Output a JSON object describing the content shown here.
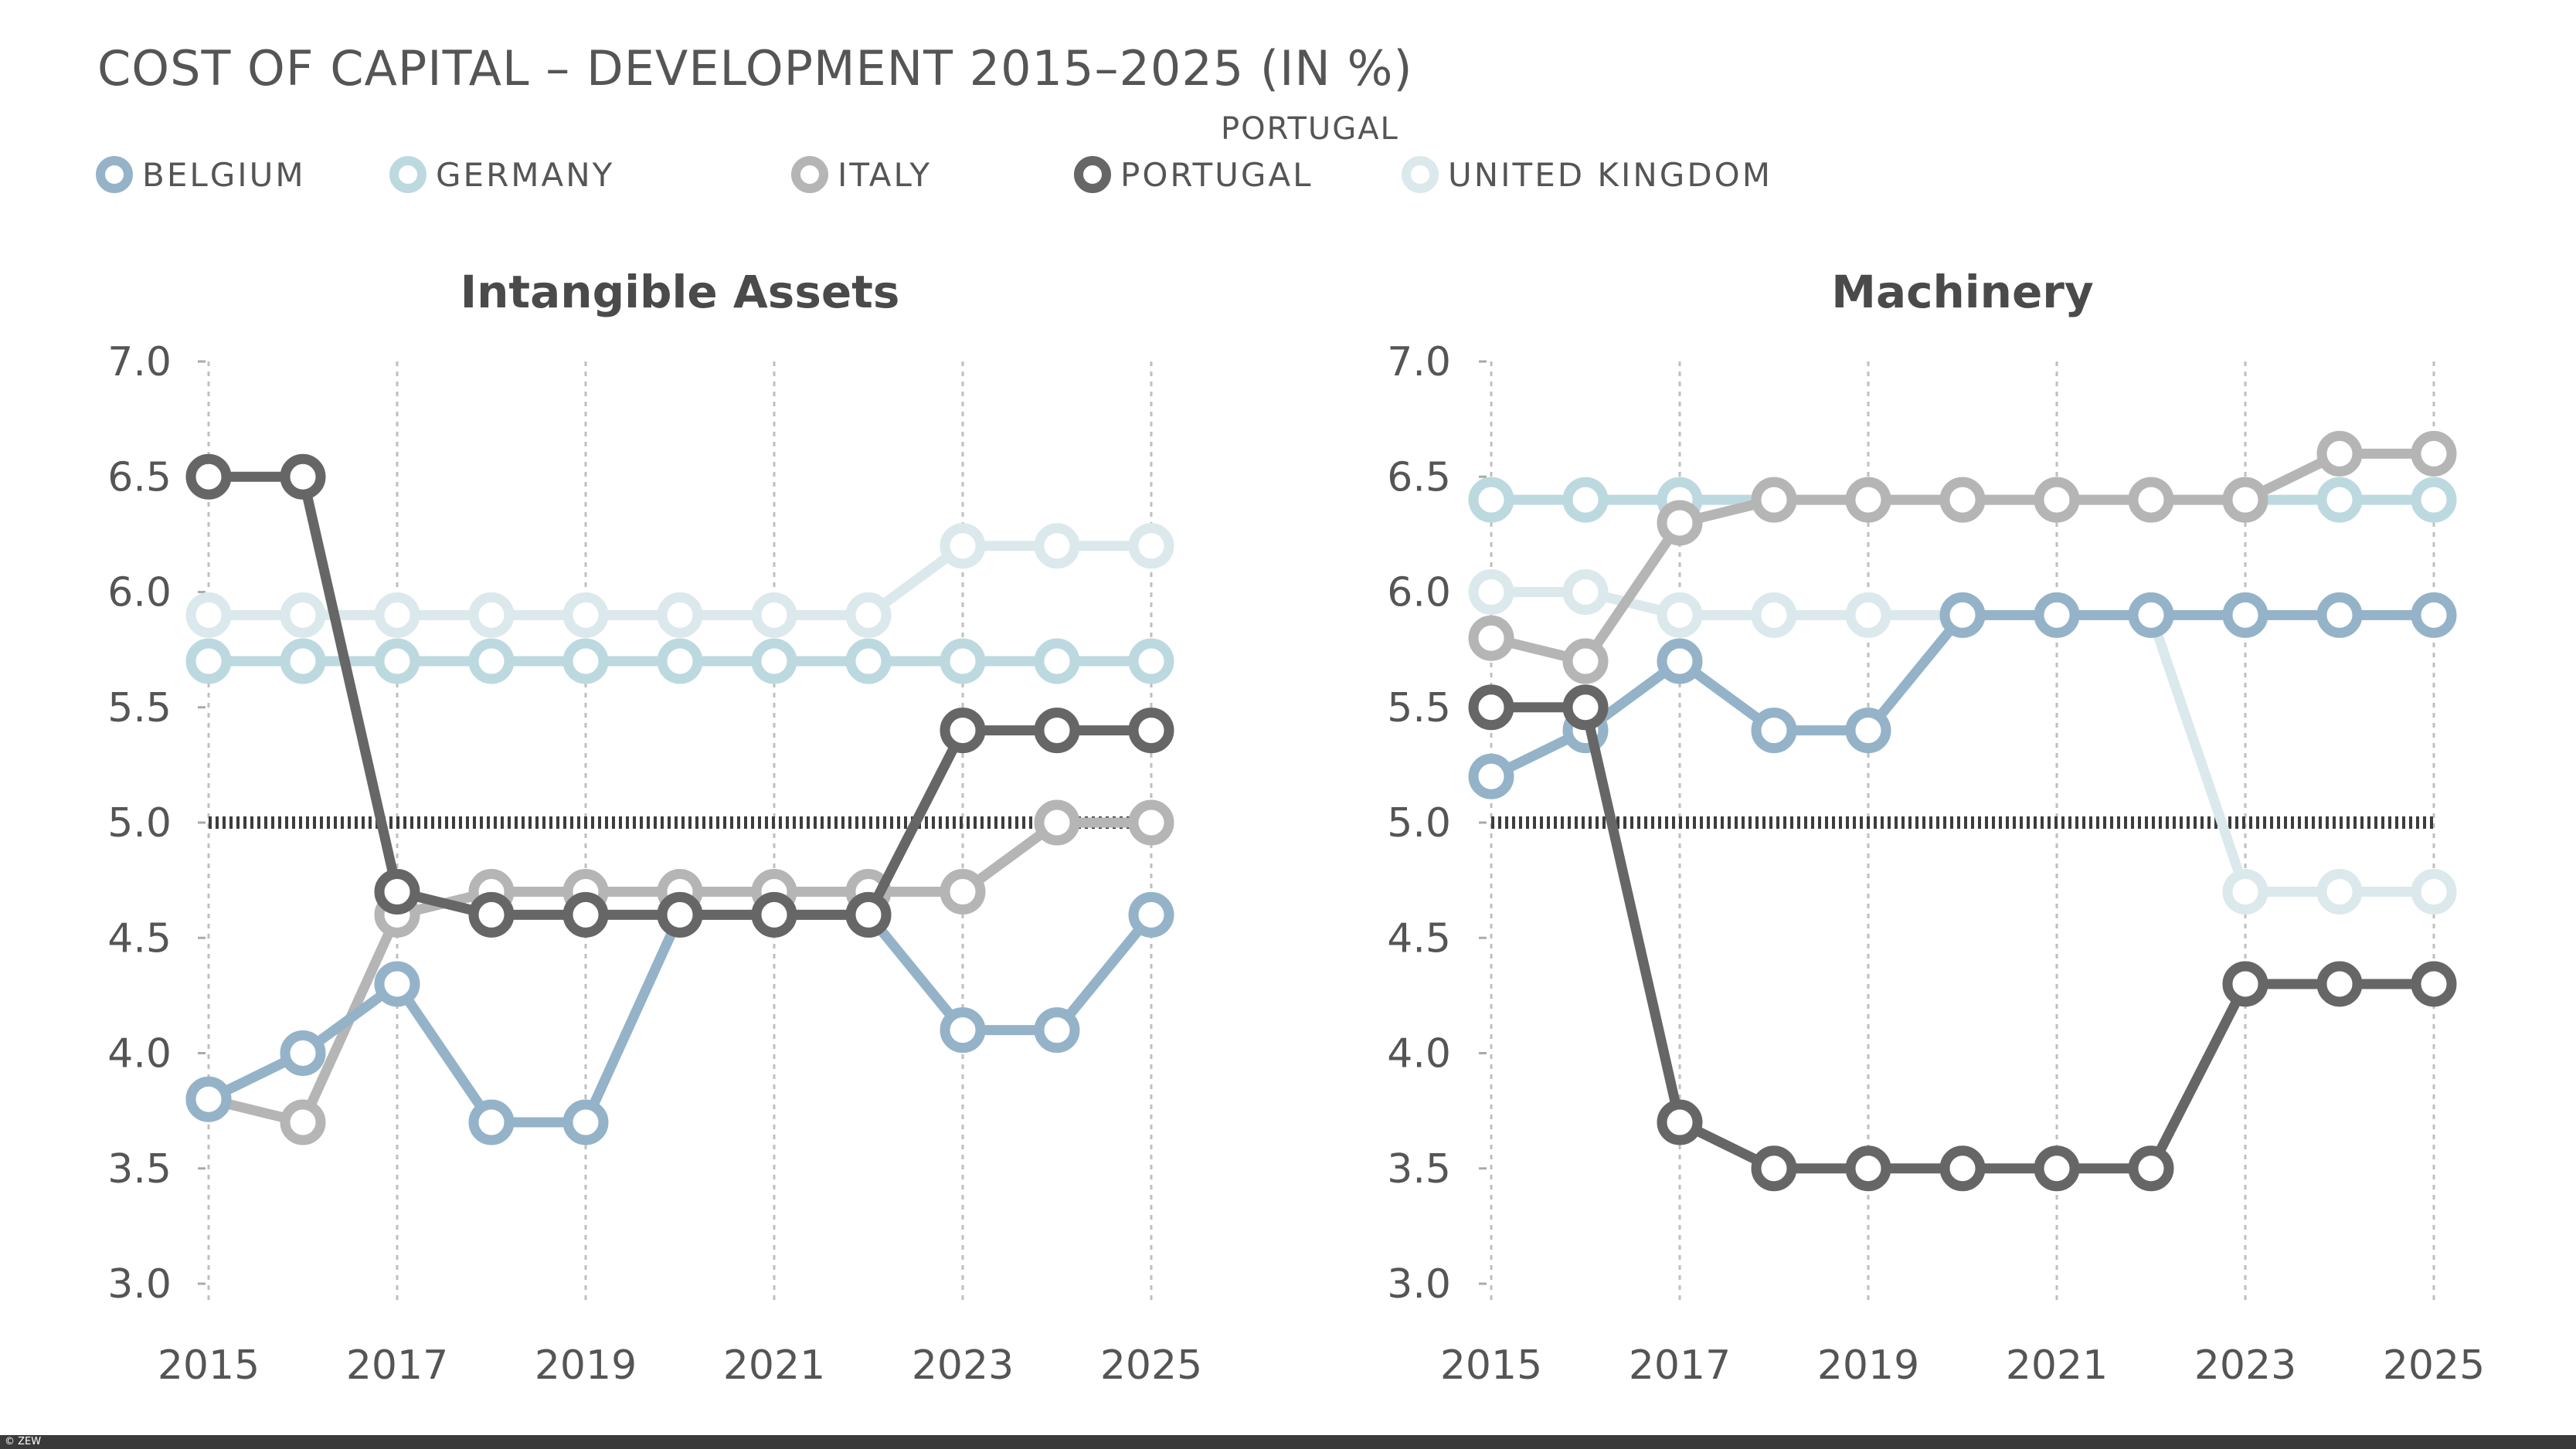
{
  "title": "COST OF CAPITAL – DEVELOPMENT 2015–2025 (IN %)",
  "legend_extra_label": "PORTUGAL",
  "legend": [
    {
      "label": "BELGIUM",
      "color": "#94b3c8"
    },
    {
      "label": "GERMANY",
      "color": "#bcd9df"
    },
    {
      "label": "ITALY",
      "color": "#b5b5b5"
    },
    {
      "label": "PORTUGAL",
      "color": "#666666"
    },
    {
      "label": "UNITED KINGDOM",
      "color": "#dbe9ec"
    }
  ],
  "footer": "© ZEW",
  "chart_data": [
    {
      "type": "line",
      "title": "Intangible Assets",
      "x": [
        2015,
        2016,
        2017,
        2018,
        2019,
        2020,
        2021,
        2022,
        2023,
        2024,
        2025
      ],
      "x_tick_labels": [
        "2015",
        "2017",
        "2019",
        "2021",
        "2023",
        "2025"
      ],
      "y_tick_labels": [
        "7.0",
        "6.5",
        "6.0",
        "5.5",
        "5.0",
        "4.5",
        "4.0",
        "3.5",
        "3.0"
      ],
      "ylim": [
        3.0,
        7.0
      ],
      "reference_line": 5.0,
      "grid": "vertical dotted",
      "series": [
        {
          "name": "UNITED KINGDOM",
          "color": "#dbe9ec",
          "values": [
            5.9,
            5.9,
            5.9,
            5.9,
            5.9,
            5.9,
            5.9,
            5.9,
            6.2,
            6.2,
            6.2
          ]
        },
        {
          "name": "GERMANY",
          "color": "#bcd9df",
          "values": [
            5.7,
            5.7,
            5.7,
            5.7,
            5.7,
            5.7,
            5.7,
            5.7,
            5.7,
            5.7,
            5.7
          ]
        },
        {
          "name": "ITALY",
          "color": "#b5b5b5",
          "values": [
            3.8,
            3.7,
            4.6,
            4.7,
            4.7,
            4.7,
            4.7,
            4.7,
            4.7,
            5.0,
            5.0
          ]
        },
        {
          "name": "BELGIUM",
          "color": "#94b3c8",
          "values": [
            3.8,
            4.0,
            4.3,
            3.7,
            3.7,
            4.6,
            4.6,
            4.6,
            4.1,
            4.1,
            4.6
          ]
        },
        {
          "name": "PORTUGAL",
          "color": "#666666",
          "values": [
            6.5,
            6.5,
            4.7,
            4.6,
            4.6,
            4.6,
            4.6,
            4.6,
            5.4,
            5.4,
            5.4
          ]
        }
      ]
    },
    {
      "type": "line",
      "title": "Machinery",
      "x": [
        2015,
        2016,
        2017,
        2018,
        2019,
        2020,
        2021,
        2022,
        2023,
        2024,
        2025
      ],
      "x_tick_labels": [
        "2015",
        "2017",
        "2019",
        "2021",
        "2023",
        "2025"
      ],
      "y_tick_labels": [
        "7.0",
        "6.5",
        "6.0",
        "5.5",
        "5.0",
        "4.5",
        "4.0",
        "3.5",
        "3.0"
      ],
      "ylim": [
        3.0,
        7.0
      ],
      "reference_line": 5.0,
      "grid": "vertical dotted",
      "series": [
        {
          "name": "UNITED KINGDOM",
          "color": "#dbe9ec",
          "values": [
            6.0,
            6.0,
            5.9,
            5.9,
            5.9,
            5.9,
            5.9,
            5.9,
            4.7,
            4.7,
            4.7
          ]
        },
        {
          "name": "GERMANY",
          "color": "#bcd9df",
          "values": [
            6.4,
            6.4,
            6.4,
            6.4,
            6.4,
            6.4,
            6.4,
            6.4,
            6.4,
            6.4,
            6.4
          ]
        },
        {
          "name": "ITALY",
          "color": "#b5b5b5",
          "values": [
            5.8,
            5.7,
            6.3,
            6.4,
            6.4,
            6.4,
            6.4,
            6.4,
            6.4,
            6.6,
            6.6
          ]
        },
        {
          "name": "BELGIUM",
          "color": "#94b3c8",
          "values": [
            5.2,
            5.4,
            5.7,
            5.4,
            5.4,
            5.9,
            5.9,
            5.9,
            5.9,
            5.9,
            5.9
          ]
        },
        {
          "name": "PORTUGAL",
          "color": "#666666",
          "values": [
            5.5,
            5.5,
            3.7,
            3.5,
            3.5,
            3.5,
            3.5,
            3.5,
            4.3,
            4.3,
            4.3
          ]
        }
      ]
    }
  ]
}
